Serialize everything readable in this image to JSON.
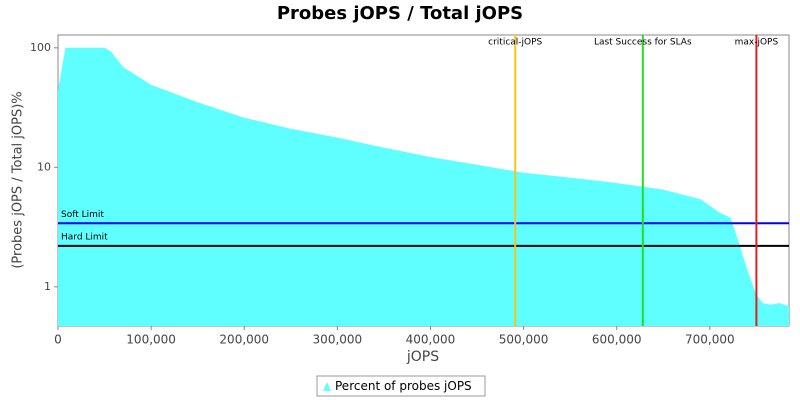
{
  "chart_data": {
    "type": "area",
    "title": "Probes jOPS / Total jOPS",
    "x_label": "jOPS",
    "y_label": "(Probes jOPS / Total jOPS)%",
    "y_scale": "log",
    "xlim": [
      0,
      785000
    ],
    "ylim": [
      0.47,
      128
    ],
    "xticks": [
      0,
      {
        "value": 100000,
        "label": "100,000"
      },
      {
        "value": 200000,
        "label": "200,000"
      },
      {
        "value": 300000,
        "label": "300,000"
      },
      {
        "value": 400000,
        "label": "400,000"
      },
      {
        "value": 500000,
        "label": "500,000"
      },
      {
        "value": 600000,
        "label": "600,000"
      },
      {
        "value": 700000,
        "label": "700,000"
      }
    ],
    "yticks": [
      1,
      10,
      100
    ],
    "legend": "bottom",
    "series": [
      {
        "name": "Percent of probes jOPS",
        "color": "#5fffff",
        "x": [
          0,
          8000,
          50000,
          57000,
          70000,
          100000,
          150000,
          200000,
          250000,
          300000,
          350000,
          400000,
          450000,
          500000,
          550000,
          600000,
          650000,
          690000,
          710000,
          722000,
          730000,
          740000,
          750000,
          757000,
          765000,
          775000,
          785000
        ],
        "values": [
          44,
          100,
          100,
          93,
          69,
          49,
          35,
          26,
          21,
          17.7,
          14.6,
          12.2,
          10.5,
          9.0,
          8.2,
          7.4,
          6.5,
          5.4,
          4.2,
          3.8,
          2.5,
          1.4,
          0.86,
          0.73,
          0.71,
          0.73,
          0.69
        ]
      }
    ],
    "vertical_markers": [
      {
        "label": "critical-jOPS",
        "value": 491000,
        "color": "#f5c518"
      },
      {
        "label": "Last Success for SLAs",
        "value": 628000,
        "color": "#22dd22"
      },
      {
        "label": "max-jOPS",
        "value": 750000,
        "color": "#e0201a"
      }
    ],
    "horizontal_markers": [
      {
        "label": "Soft Limit",
        "value": 3.4,
        "color": "#0000ee"
      },
      {
        "label": "Hard Limit",
        "value": 2.2,
        "color": "#000000"
      }
    ]
  }
}
